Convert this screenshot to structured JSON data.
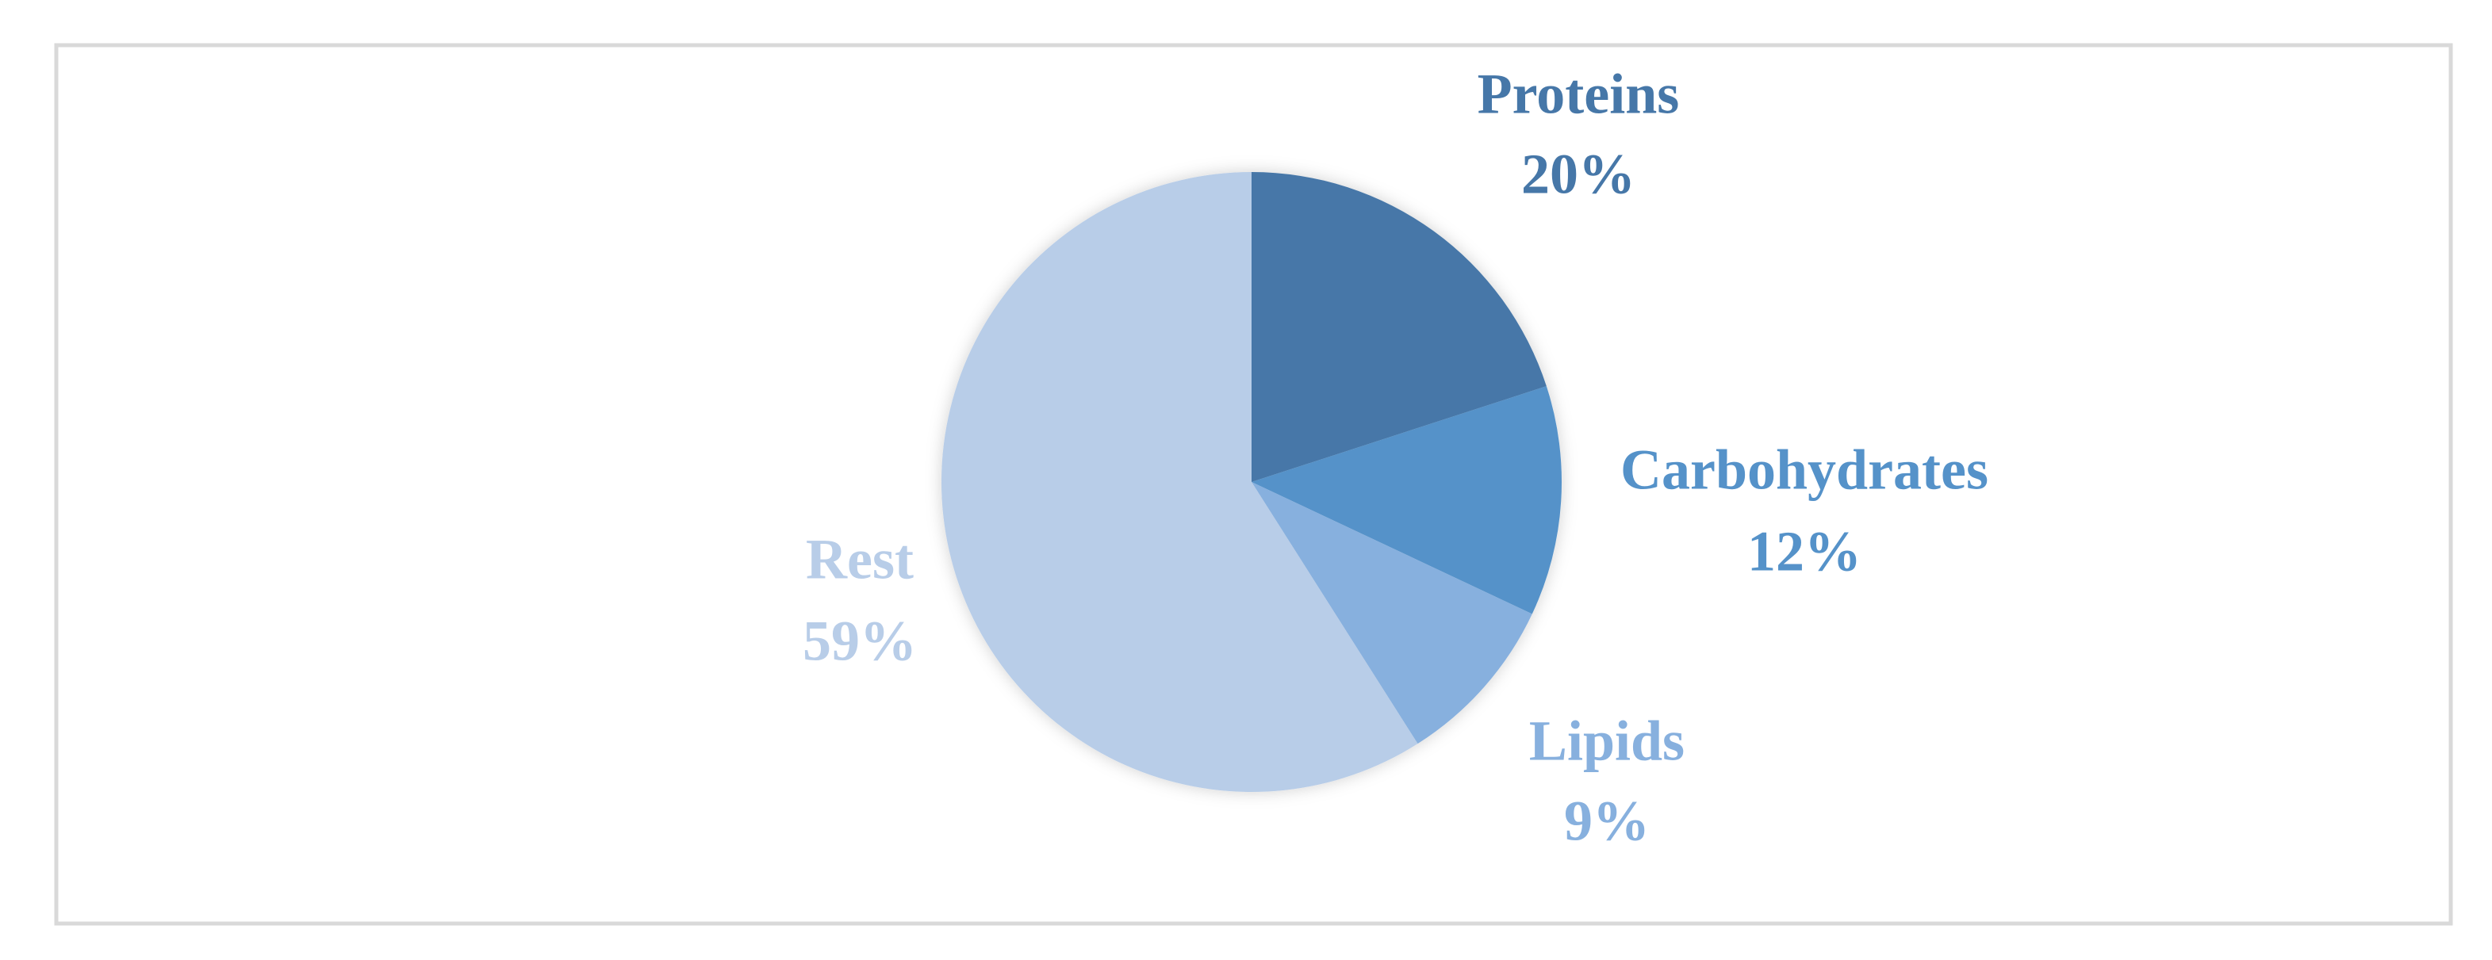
{
  "chart_data": {
    "type": "pie",
    "categories": [
      "Proteins",
      "Carbohydrates",
      "Lipids",
      "Rest"
    ],
    "values": [
      20,
      12,
      9,
      59
    ],
    "value_labels": [
      "20%",
      "12%",
      "9%",
      "59%"
    ],
    "colors": [
      "#4677a8",
      "#5592c9",
      "#87b0de",
      "#b8cde8"
    ]
  }
}
